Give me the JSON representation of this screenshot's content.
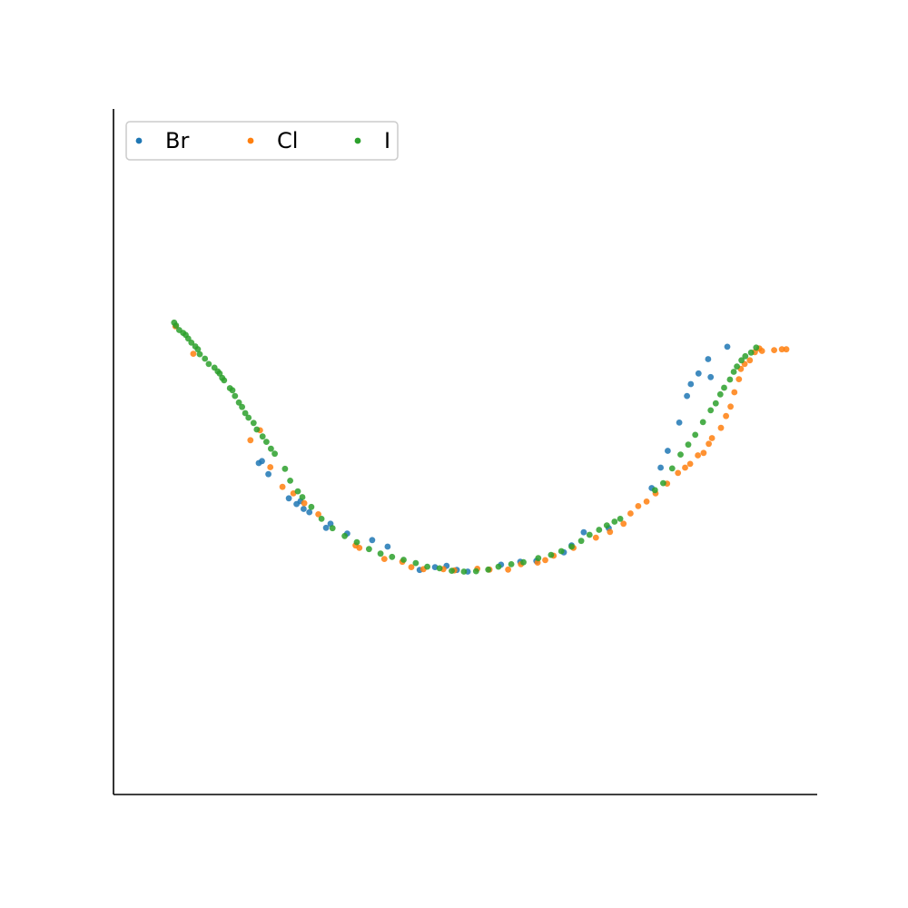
{
  "colors": {
    "Br": "#1f77b4",
    "Cl": "#ff7f0e",
    "I": "#2ca02c"
  },
  "legend": {
    "placement": "upper-left",
    "columns": 3,
    "labels": [
      "Br",
      "Cl",
      "I"
    ]
  },
  "chart_data": {
    "type": "scatter",
    "title": "",
    "xlabel": "",
    "ylabel": "",
    "xlim": [
      0,
      100
    ],
    "ylim": [
      0,
      100
    ],
    "ticks_shown": false,
    "grid": false,
    "legend_placement": "upper-left",
    "series": [
      {
        "name": "Br",
        "points": [
          [
            17.7,
            47.0
          ],
          [
            18.2,
            47.5
          ],
          [
            19.2,
            44.3
          ],
          [
            22.4,
            38.4
          ],
          [
            23.6,
            37.0
          ],
          [
            24.2,
            37.7
          ],
          [
            24.7,
            35.8
          ],
          [
            25.6,
            35.0
          ],
          [
            28.2,
            31.2
          ],
          [
            28.9,
            32.2
          ],
          [
            31.5,
            29.8
          ],
          [
            35.4,
            28.2
          ],
          [
            37.8,
            26.6
          ],
          [
            42.8,
            20.9
          ],
          [
            45.2,
            21.6
          ],
          [
            47.0,
            21.9
          ],
          [
            48.6,
            20.9
          ],
          [
            50.3,
            20.5
          ],
          [
            55.5,
            22.2
          ],
          [
            58.5,
            22.9
          ],
          [
            61.0,
            23.1
          ],
          [
            65.3,
            25.2
          ],
          [
            66.5,
            26.9
          ],
          [
            68.4,
            30.1
          ],
          [
            72.3,
            31.1
          ],
          [
            79.0,
            40.9
          ],
          [
            80.4,
            45.9
          ],
          [
            81.5,
            50.0
          ],
          [
            83.3,
            56.9
          ],
          [
            84.5,
            63.4
          ],
          [
            85.1,
            66.3
          ],
          [
            86.3,
            68.9
          ],
          [
            87.8,
            72.4
          ],
          [
            88.2,
            68.0
          ],
          [
            90.8,
            75.4
          ]
        ]
      },
      {
        "name": "Cl",
        "points": [
          [
            4.7,
            80.4
          ],
          [
            7.5,
            73.7
          ],
          [
            16.4,
            52.6
          ],
          [
            17.9,
            55.0
          ],
          [
            19.5,
            46.0
          ],
          [
            21.4,
            41.2
          ],
          [
            23.1,
            39.6
          ],
          [
            24.8,
            37.2
          ],
          [
            27.0,
            34.5
          ],
          [
            32.8,
            26.9
          ],
          [
            33.4,
            26.3
          ],
          [
            37.3,
            23.6
          ],
          [
            40.1,
            22.9
          ],
          [
            41.5,
            21.6
          ],
          [
            43.4,
            21.1
          ],
          [
            46.5,
            21.1
          ],
          [
            48.2,
            20.8
          ],
          [
            51.8,
            21.2
          ],
          [
            53.7,
            21.0
          ],
          [
            56.6,
            21.0
          ],
          [
            58.6,
            22.3
          ],
          [
            61.2,
            22.7
          ],
          [
            62.4,
            23.3
          ],
          [
            63.7,
            24.4
          ],
          [
            66.8,
            26.3
          ],
          [
            70.3,
            28.8
          ],
          [
            72.5,
            30.2
          ],
          [
            74.6,
            32.2
          ],
          [
            75.7,
            34.7
          ],
          [
            76.9,
            36.5
          ],
          [
            78.2,
            37.6
          ],
          [
            79.6,
            39.6
          ],
          [
            81.4,
            42.0
          ],
          [
            83.1,
            44.6
          ],
          [
            84.2,
            45.9
          ],
          [
            85.0,
            46.8
          ],
          [
            86.2,
            48.9
          ],
          [
            87.1,
            49.5
          ],
          [
            87.9,
            51.7
          ],
          [
            88.4,
            53.1
          ],
          [
            89.8,
            55.6
          ],
          [
            90.6,
            58.5
          ],
          [
            91.3,
            60.8
          ],
          [
            91.9,
            64.3
          ],
          [
            92.6,
            67.5
          ],
          [
            92.9,
            70.0
          ],
          [
            93.5,
            71.2
          ],
          [
            94.3,
            72.1
          ],
          [
            95.1,
            74.1
          ],
          [
            95.8,
            75.0
          ],
          [
            96.2,
            74.4
          ],
          [
            98.1,
            74.6
          ],
          [
            99.3,
            74.8
          ],
          [
            100.0,
            74.8
          ]
        ]
      },
      {
        "name": "I",
        "points": [
          [
            4.5,
            81.3
          ],
          [
            4.8,
            80.6
          ],
          [
            5.3,
            79.5
          ],
          [
            5.9,
            78.8
          ],
          [
            6.3,
            78.3
          ],
          [
            6.7,
            77.4
          ],
          [
            7.2,
            76.4
          ],
          [
            7.8,
            75.5
          ],
          [
            8.2,
            74.8
          ],
          [
            8.5,
            73.6
          ],
          [
            9.3,
            72.5
          ],
          [
            9.9,
            71.2
          ],
          [
            10.8,
            70.3
          ],
          [
            11.3,
            69.4
          ],
          [
            11.6,
            68.9
          ],
          [
            12.0,
            67.8
          ],
          [
            12.3,
            67.2
          ],
          [
            13.2,
            65.3
          ],
          [
            13.6,
            64.8
          ],
          [
            14.0,
            63.4
          ],
          [
            14.6,
            61.8
          ],
          [
            15.1,
            60.7
          ],
          [
            15.6,
            59.2
          ],
          [
            16.1,
            58.1
          ],
          [
            16.9,
            56.8
          ],
          [
            17.4,
            55.2
          ],
          [
            18.3,
            53.5
          ],
          [
            18.9,
            52.2
          ],
          [
            19.6,
            50.5
          ],
          [
            20.2,
            49.3
          ],
          [
            21.8,
            45.6
          ],
          [
            22.6,
            42.7
          ],
          [
            23.8,
            40.1
          ],
          [
            24.5,
            38.7
          ],
          [
            25.9,
            36.3
          ],
          [
            27.5,
            33.4
          ],
          [
            29.2,
            31.1
          ],
          [
            31.1,
            29.2
          ],
          [
            33.0,
            27.7
          ],
          [
            34.9,
            26.0
          ],
          [
            36.7,
            24.9
          ],
          [
            38.5,
            24.1
          ],
          [
            40.3,
            23.4
          ],
          [
            42.2,
            22.6
          ],
          [
            44.0,
            21.7
          ],
          [
            45.9,
            21.3
          ],
          [
            47.8,
            20.7
          ],
          [
            49.7,
            20.5
          ],
          [
            51.6,
            20.6
          ],
          [
            53.5,
            21.0
          ],
          [
            55.1,
            21.7
          ],
          [
            57.1,
            22.3
          ],
          [
            59.0,
            22.8
          ],
          [
            61.3,
            23.8
          ],
          [
            63.3,
            24.6
          ],
          [
            64.9,
            25.5
          ],
          [
            66.5,
            26.6
          ],
          [
            68.0,
            28.0
          ],
          [
            69.3,
            29.5
          ],
          [
            70.8,
            30.7
          ],
          [
            72.0,
            31.8
          ],
          [
            73.2,
            32.7
          ],
          [
            74.1,
            33.4
          ],
          [
            79.5,
            40.4
          ],
          [
            80.8,
            42.1
          ],
          [
            82.2,
            45.7
          ],
          [
            83.5,
            49.1
          ],
          [
            84.7,
            51.5
          ],
          [
            85.8,
            53.9
          ],
          [
            87.0,
            57.0
          ],
          [
            88.2,
            59.9
          ],
          [
            89.0,
            61.6
          ],
          [
            89.7,
            63.8
          ],
          [
            90.3,
            65.4
          ],
          [
            91.2,
            67.4
          ],
          [
            91.8,
            69.3
          ],
          [
            92.3,
            70.6
          ],
          [
            93.0,
            72.1
          ],
          [
            93.6,
            73.1
          ],
          [
            94.5,
            74.0
          ],
          [
            95.3,
            75.2
          ]
        ]
      }
    ]
  }
}
